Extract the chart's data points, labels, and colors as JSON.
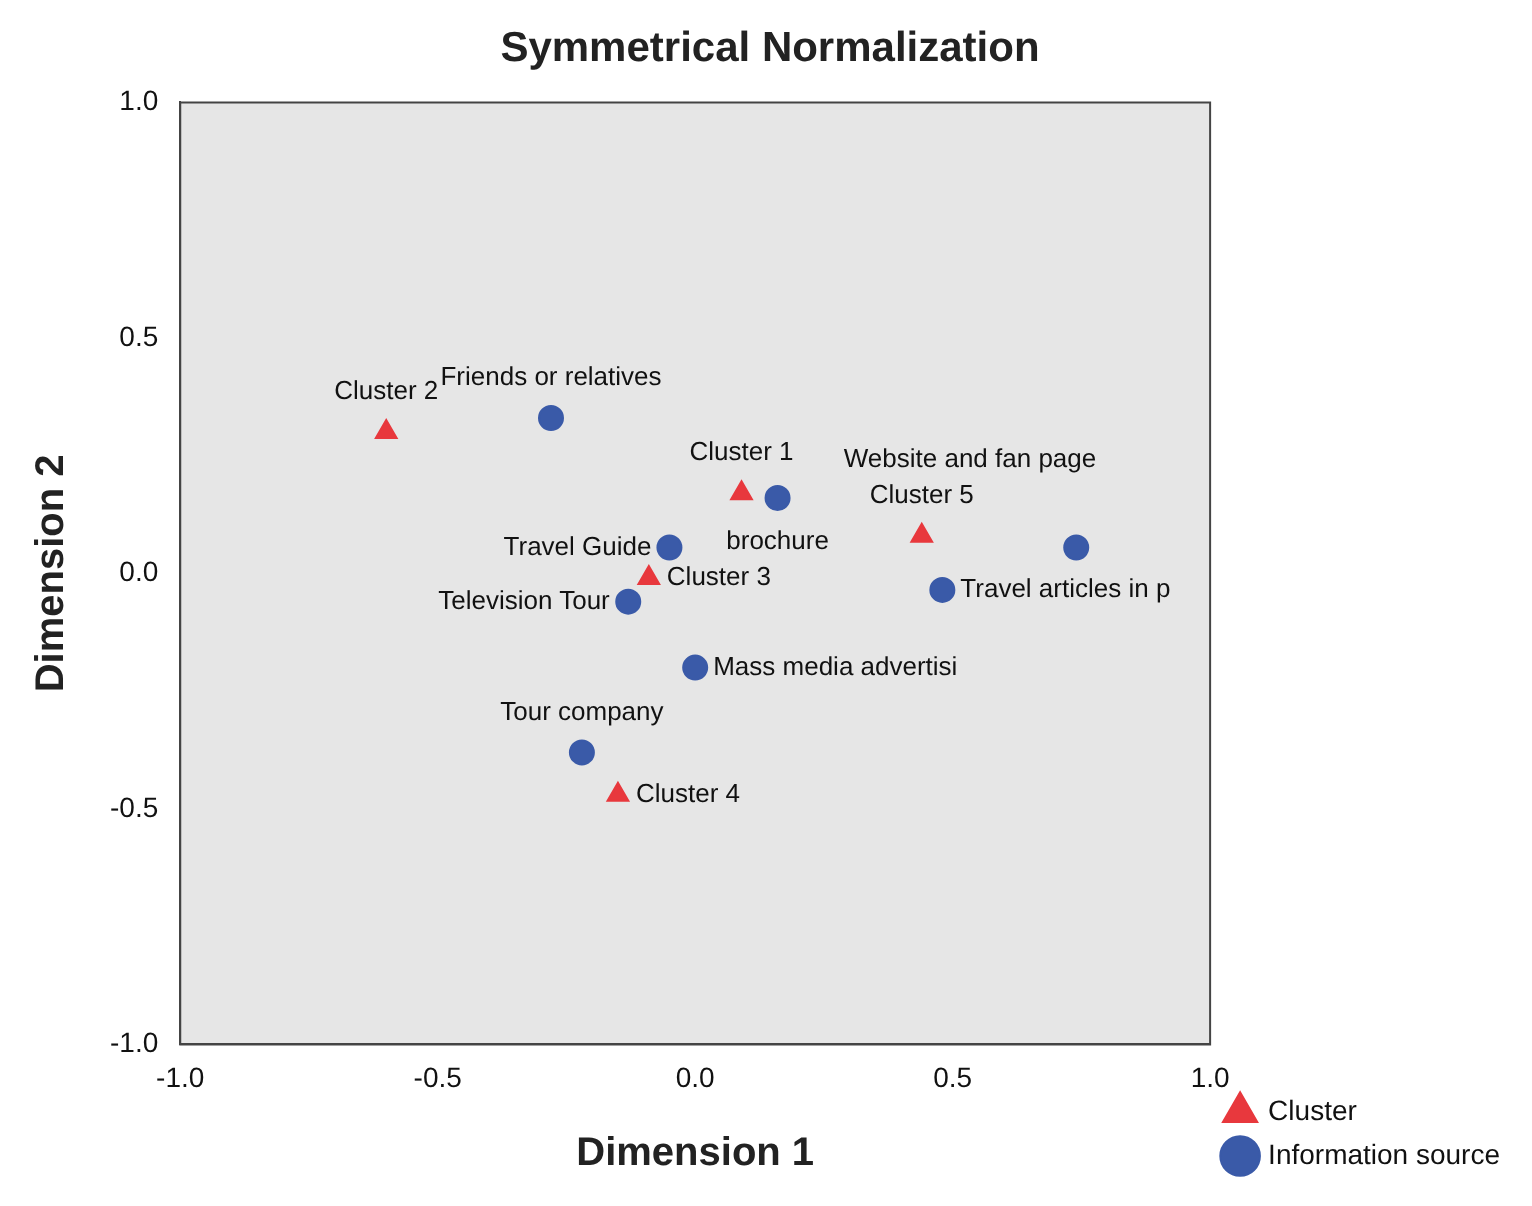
{
  "chart_data": {
    "type": "scatter",
    "title": "Symmetrical Normalization",
    "xlabel": "Dimension 1",
    "ylabel": "Dimension 2",
    "xlim": [
      -1.0,
      1.0
    ],
    "ylim": [
      -1.0,
      1.0
    ],
    "xticks": [
      {
        "value": -1,
        "label": "-1.0"
      },
      {
        "value": -0.5,
        "label": "-0.5"
      },
      {
        "value": 0,
        "label": "0.0"
      },
      {
        "value": 0.5,
        "label": "0.5"
      },
      {
        "value": 1,
        "label": "1.0"
      }
    ],
    "yticks": [
      {
        "value": -1,
        "label": "-1.0"
      },
      {
        "value": -0.5,
        "label": "-0.5"
      },
      {
        "value": 0,
        "label": "0.0"
      },
      {
        "value": 0.5,
        "label": "0.5"
      },
      {
        "value": 1,
        "label": "1.0"
      }
    ],
    "grid": false,
    "legend": "bottom right",
    "series": [
      {
        "name": "Cluster",
        "color": "#e8383d",
        "marker": "triangle",
        "x": [
          0.09,
          -0.6,
          -0.09,
          -0.15,
          0.44
        ],
        "values": [
          0.17,
          0.3,
          -0.01,
          -0.47,
          0.08
        ]
      },
      {
        "name": "Information source",
        "color": "#3a5aa8",
        "marker": "circle",
        "x": [
          -0.28,
          0.16,
          -0.05,
          0.74,
          0.48,
          -0.13,
          0.0,
          -0.22
        ],
        "values": [
          0.33,
          0.16,
          0.055,
          0.055,
          -0.035,
          -0.06,
          -0.2,
          -0.38
        ]
      }
    ],
    "annotations": [
      {
        "text": "Cluster 1",
        "x": 0.09,
        "y": 0.17
      },
      {
        "text": "Cluster 2",
        "x": -0.6,
        "y": 0.3
      },
      {
        "text": "Cluster 3",
        "x": -0.09,
        "y": -0.01
      },
      {
        "text": "Cluster 4",
        "x": -0.15,
        "y": -0.47
      },
      {
        "text": "Cluster 5",
        "x": 0.44,
        "y": 0.08
      },
      {
        "text": "Friends or relatives",
        "x": -0.28,
        "y": 0.33
      },
      {
        "text": "brochure",
        "x": 0.16,
        "y": 0.16
      },
      {
        "text": "Travel Guide",
        "x": -0.05,
        "y": 0.055
      },
      {
        "text": "Website and fan page",
        "x": 0.74,
        "y": 0.055
      },
      {
        "text": "Travel articles in p",
        "x": 0.48,
        "y": -0.035
      },
      {
        "text": "Television Tour",
        "x": -0.13,
        "y": -0.06
      },
      {
        "text": "Mass media advertisi",
        "x": 0.0,
        "y": -0.2
      },
      {
        "text": "Tour company",
        "x": -0.22,
        "y": -0.38
      }
    ]
  }
}
